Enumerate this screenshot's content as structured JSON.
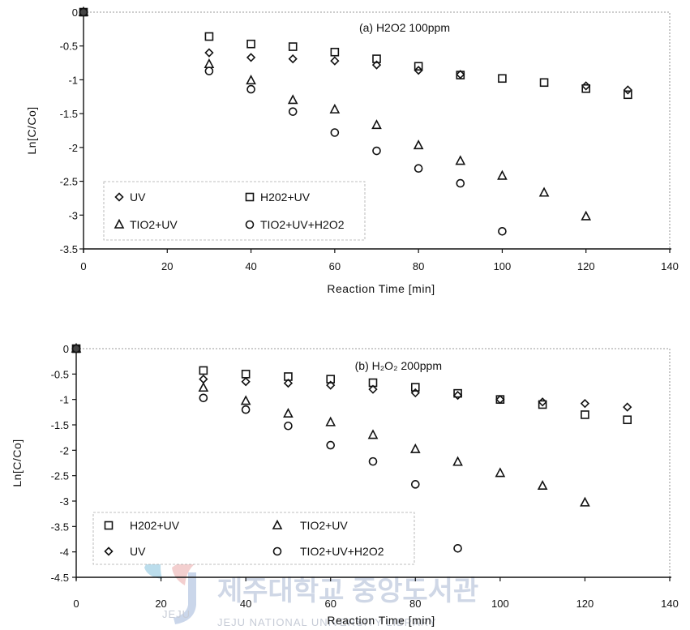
{
  "watermark": {
    "text_ko": "제주대학교 중앙도서관",
    "text_en": "JEJU NATIONAL UNIVERSITY LIBRARY",
    "logo_text": "JEJU"
  },
  "chart_data": [
    {
      "type": "scatter",
      "title": "(a) H2O2 100ppm",
      "xlabel": "Reaction Time [min]",
      "ylabel": "Ln[C/Co]",
      "xlim": [
        0,
        140
      ],
      "ylim": [
        -3.5,
        0
      ],
      "xticks": [
        "0",
        "20",
        "40",
        "60",
        "80",
        "100",
        "120",
        "140"
      ],
      "yticks": [
        "0",
        "-0.5",
        "-1",
        "-1.5",
        "-2",
        "-2.5",
        "-3",
        "-3.5"
      ],
      "grid": false,
      "legend_position": "bottom-left",
      "legend_order": [
        "UV",
        "H202+UV",
        "TIO2+UV",
        "TIO2+UV+H2O2"
      ],
      "series": [
        {
          "name": "UV",
          "marker": "diamond",
          "x": [
            0,
            30,
            40,
            50,
            60,
            70,
            80,
            90,
            120,
            130
          ],
          "y": [
            0,
            -0.6,
            -0.67,
            -0.69,
            -0.72,
            -0.78,
            -0.86,
            -0.92,
            -1.09,
            -1.15
          ]
        },
        {
          "name": "H202+UV",
          "marker": "square",
          "x": [
            0,
            30,
            40,
            50,
            60,
            70,
            80,
            90,
            100,
            110,
            120,
            130
          ],
          "y": [
            0,
            -0.36,
            -0.47,
            -0.51,
            -0.59,
            -0.69,
            -0.8,
            -0.93,
            -0.98,
            -1.04,
            -1.13,
            -1.22
          ]
        },
        {
          "name": "TIO2+UV",
          "marker": "triangle",
          "x": [
            0,
            30,
            40,
            50,
            60,
            70,
            80,
            90,
            100,
            110,
            120
          ],
          "y": [
            0,
            -0.77,
            -1.01,
            -1.3,
            -1.44,
            -1.67,
            -1.97,
            -2.2,
            -2.42,
            -2.67,
            -3.02
          ]
        },
        {
          "name": "TIO2+UV+H2O2",
          "marker": "circle",
          "x": [
            0,
            30,
            40,
            50,
            60,
            70,
            80,
            90,
            100
          ],
          "y": [
            0,
            -0.87,
            -1.14,
            -1.47,
            -1.78,
            -2.05,
            -2.31,
            -2.53,
            -3.24
          ]
        }
      ]
    },
    {
      "type": "scatter",
      "title": "(b) H₂O₂ 200ppm",
      "xlabel": "Reaction Time [min]",
      "ylabel": "Ln[C/Co]",
      "xlim": [
        0,
        140
      ],
      "ylim": [
        -4.5,
        0
      ],
      "xticks": [
        "0",
        "20",
        "40",
        "60",
        "80",
        "100",
        "120",
        "140"
      ],
      "yticks": [
        "0",
        "-0.5",
        "-1",
        "-1.5",
        "-2",
        "-2.5",
        "-3",
        "-3.5",
        "-4",
        "-4.5"
      ],
      "grid": false,
      "legend_position": "bottom-left",
      "legend_order": [
        "H202+UV",
        "TIO2+UV",
        "UV",
        "TIO2+UV+H2O2"
      ],
      "series": [
        {
          "name": "H202+UV",
          "marker": "square",
          "x": [
            0,
            30,
            40,
            50,
            60,
            70,
            80,
            90,
            100,
            110,
            120,
            130
          ],
          "y": [
            0,
            -0.43,
            -0.5,
            -0.55,
            -0.6,
            -0.67,
            -0.76,
            -0.88,
            -1.0,
            -1.1,
            -1.3,
            -1.4
          ]
        },
        {
          "name": "UV",
          "marker": "diamond",
          "x": [
            0,
            30,
            40,
            50,
            60,
            70,
            80,
            90,
            100,
            110,
            120,
            130
          ],
          "y": [
            0,
            -0.6,
            -0.65,
            -0.68,
            -0.72,
            -0.8,
            -0.87,
            -0.92,
            -1.0,
            -1.05,
            -1.08,
            -1.15
          ]
        },
        {
          "name": "TIO2+UV",
          "marker": "triangle",
          "x": [
            0,
            30,
            40,
            50,
            60,
            70,
            80,
            90,
            100,
            110,
            120
          ],
          "y": [
            0,
            -0.77,
            -1.03,
            -1.28,
            -1.45,
            -1.7,
            -1.98,
            -2.23,
            -2.45,
            -2.7,
            -3.03
          ]
        },
        {
          "name": "TIO2+UV+H2O2",
          "marker": "circle",
          "x": [
            0,
            30,
            40,
            50,
            60,
            70,
            80,
            90
          ],
          "y": [
            0,
            -0.97,
            -1.2,
            -1.52,
            -1.9,
            -2.22,
            -2.67,
            -3.93
          ]
        }
      ]
    }
  ]
}
